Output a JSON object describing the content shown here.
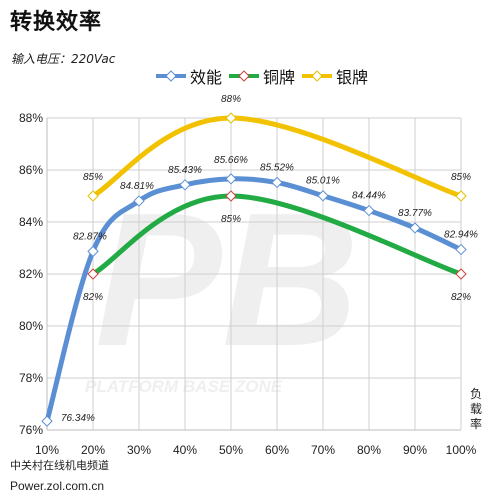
{
  "header": {
    "title": "转换效率",
    "subtitle": "输入电压：220Vac"
  },
  "footer": {
    "source_line1": "中关村在线机电频道",
    "source_line2": "Power.zol.com.cn"
  },
  "watermark": {
    "text": "PLATFORM BASE ZONE",
    "logo_text": "PB"
  },
  "chart_data": {
    "type": "line",
    "x_unit_label": "负载率",
    "categories": [
      "10%",
      "20%",
      "30%",
      "40%",
      "50%",
      "60%",
      "70%",
      "80%",
      "90%",
      "100%"
    ],
    "x": [
      10,
      20,
      30,
      40,
      50,
      60,
      70,
      80,
      90,
      100
    ],
    "ylim": [
      76,
      88
    ],
    "yticks": [
      76,
      78,
      80,
      82,
      84,
      86,
      88
    ],
    "ytick_labels": [
      "76%",
      "78%",
      "80%",
      "82%",
      "84%",
      "86%",
      "88%"
    ],
    "grid": true,
    "legend_position": "top",
    "series": [
      {
        "name": "效能",
        "color": "#5b8fd4",
        "x": [
          10,
          20,
          30,
          40,
          50,
          60,
          70,
          80,
          90,
          100
        ],
        "values": [
          76.34,
          82.87,
          84.81,
          85.43,
          85.66,
          85.52,
          85.01,
          84.44,
          83.77,
          82.94
        ],
        "labels": [
          "76.34%",
          "82.87%",
          "84.81%",
          "85.43%",
          "85.66%",
          "85.52%",
          "85.01%",
          "84.44%",
          "83.77%",
          "82.94%"
        ]
      },
      {
        "name": "铜牌",
        "color": "#22aa44",
        "x": [
          20,
          50,
          100
        ],
        "values": [
          82,
          85,
          82
        ],
        "labels": [
          "82%",
          "85%",
          "82%"
        ]
      },
      {
        "name": "银牌",
        "color": "#f2c200",
        "x": [
          20,
          50,
          100
        ],
        "values": [
          85,
          88,
          85
        ],
        "labels": [
          "85%",
          "88%",
          "85%"
        ]
      }
    ]
  }
}
